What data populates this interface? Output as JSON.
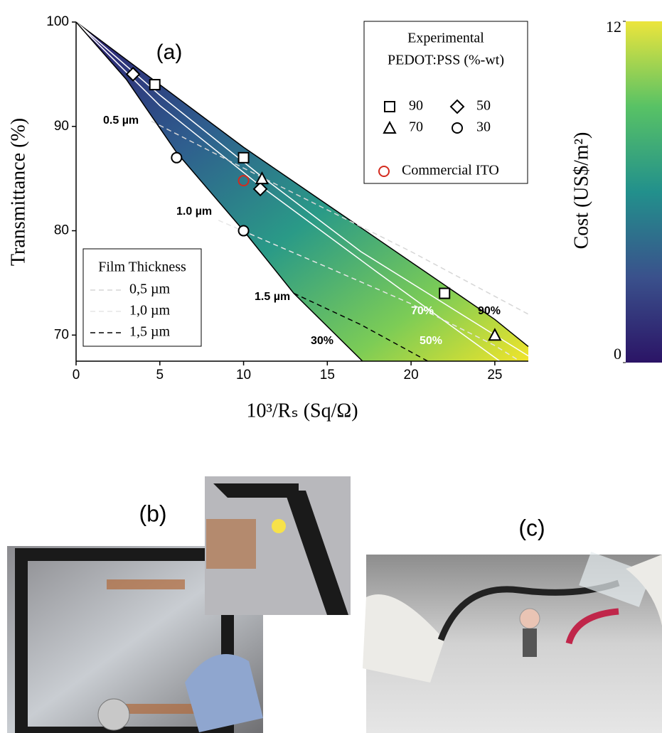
{
  "chart_data": {
    "type": "scatter",
    "panel_label": "(a)",
    "x_label": "10³/Rₛ (Sq/Ω)",
    "y_label": "Transmittance (%)",
    "xlim": [
      0,
      27
    ],
    "ylim": [
      67.5,
      100
    ],
    "xticks": [
      0,
      5,
      10,
      15,
      20,
      25
    ],
    "yticks": [
      70,
      80,
      90,
      100
    ],
    "legend_title": [
      "Experimental",
      "PEDOT:PSS (%-wt)"
    ],
    "series": [
      {
        "name": "90",
        "marker": "square",
        "color": "#000000",
        "x": [
          4.7,
          10,
          22
        ],
        "values": [
          94,
          87,
          74
        ]
      },
      {
        "name": "50",
        "marker": "diamond",
        "color": "#000000",
        "x": [
          3.4,
          11
        ],
        "values": [
          95,
          84
        ]
      },
      {
        "name": "70",
        "marker": "triangle",
        "color": "#000000",
        "x": [
          11.1,
          25
        ],
        "values": [
          85,
          70
        ]
      },
      {
        "name": "30",
        "marker": "circle",
        "color": "#000000",
        "x": [
          6,
          10
        ],
        "values": [
          87,
          80
        ]
      },
      {
        "name": "Commercial ITO",
        "marker": "circle",
        "color": "#d42a1e",
        "x": [
          10
        ],
        "values": [
          84.8
        ]
      }
    ],
    "curves": [
      {
        "label": "90%",
        "color": "#000000",
        "x": [
          0,
          5,
          10,
          15,
          20,
          25,
          27
        ],
        "values": [
          100,
          94,
          88,
          82.5,
          77,
          71.5,
          68.9
        ]
      },
      {
        "label": "70%",
        "color": "#ffffff",
        "x": [
          0,
          5,
          11,
          17,
          22,
          27
        ],
        "values": [
          100,
          93,
          85.3,
          78,
          73,
          68
        ]
      },
      {
        "label": "50%",
        "color": "#ffffff",
        "x": [
          0,
          5,
          11,
          18,
          25.3
        ],
        "values": [
          100,
          92,
          84.3,
          76,
          67.5
        ]
      },
      {
        "label": "30%",
        "color": "#000000",
        "x": [
          0,
          3,
          6,
          10,
          13,
          17.1
        ],
        "values": [
          100,
          94.5,
          87.5,
          80,
          74,
          67.5
        ]
      }
    ],
    "thickness_title": "Film Thickness",
    "thickness": [
      {
        "name": "0,5 µm",
        "label": "0.5 µm",
        "color": "#d6d6d6",
        "x": [
          4.5,
          10,
          15,
          20,
          27
        ],
        "values": [
          90.5,
          86,
          82,
          78,
          72
        ]
      },
      {
        "name": "1,0 µm",
        "label": "1.0 µm",
        "color": "#e6e6e6",
        "x": [
          8.5,
          15,
          20,
          25,
          26.5
        ],
        "values": [
          81,
          76.5,
          73,
          69,
          67.5
        ]
      },
      {
        "name": "1,5 µm",
        "label": "1.5 µm",
        "color": "#000000",
        "x": [
          13,
          17,
          21
        ],
        "values": [
          74,
          71,
          67.5
        ]
      }
    ],
    "colorbar": {
      "label": "Cost (US$/m²)",
      "lim": [
        0,
        12
      ],
      "ticks": [
        0,
        12
      ]
    }
  },
  "panels": {
    "b": "(b)",
    "c": "(c)"
  }
}
